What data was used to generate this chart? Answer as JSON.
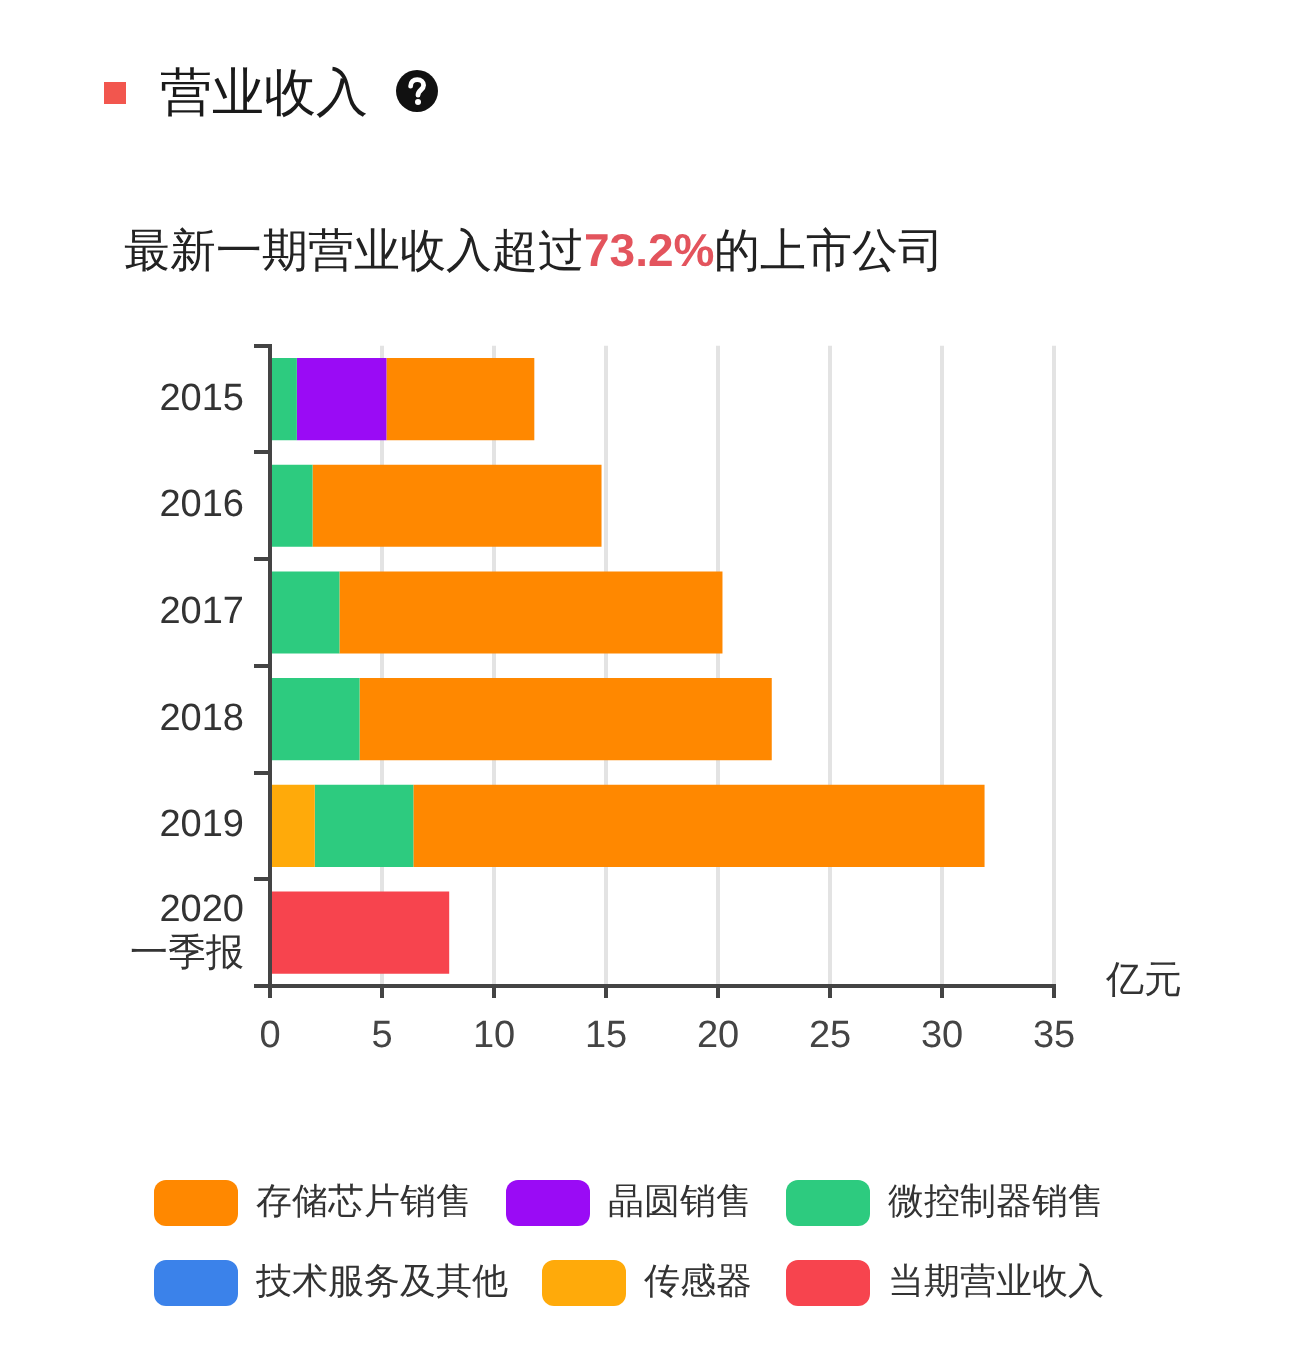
{
  "chart_data": {
    "type": "bar",
    "orientation": "horizontal",
    "stacked": true,
    "title": "营业收入",
    "subtitle": "最新一期营业收入超过73.2%的上市公司",
    "xlabel": "亿元",
    "categories": [
      "2015",
      "2016",
      "2017",
      "2018",
      "2019",
      "2020\n一季报"
    ],
    "series": [
      {
        "name": "当期营业收入",
        "color": "#f7444e",
        "values": [
          null,
          null,
          null,
          null,
          null,
          8.0
        ]
      },
      {
        "name": "传感器",
        "color": "#ffaa0a",
        "values": [
          null,
          null,
          null,
          null,
          2.0,
          null
        ]
      },
      {
        "name": "技术服务及其他",
        "color": "#3b82ea",
        "values": [
          null,
          null,
          null,
          null,
          null,
          null
        ]
      },
      {
        "name": "微控制器销售",
        "color": "#2dcb7f",
        "values": [
          1.2,
          1.9,
          3.1,
          4.0,
          4.4,
          null
        ]
      },
      {
        "name": "晶圆销售",
        "color": "#9a0bf5",
        "values": [
          4.0,
          null,
          null,
          null,
          null,
          null
        ]
      },
      {
        "name": "存储芯片销售",
        "color": "#ff8800",
        "values": [
          6.6,
          12.9,
          17.1,
          18.4,
          25.5,
          null
        ]
      }
    ],
    "xlim": [
      0,
      35
    ],
    "xticks": [
      0,
      5,
      10,
      15,
      20,
      25,
      30,
      35
    ],
    "grid": "x",
    "legend": "bottom"
  }
}
